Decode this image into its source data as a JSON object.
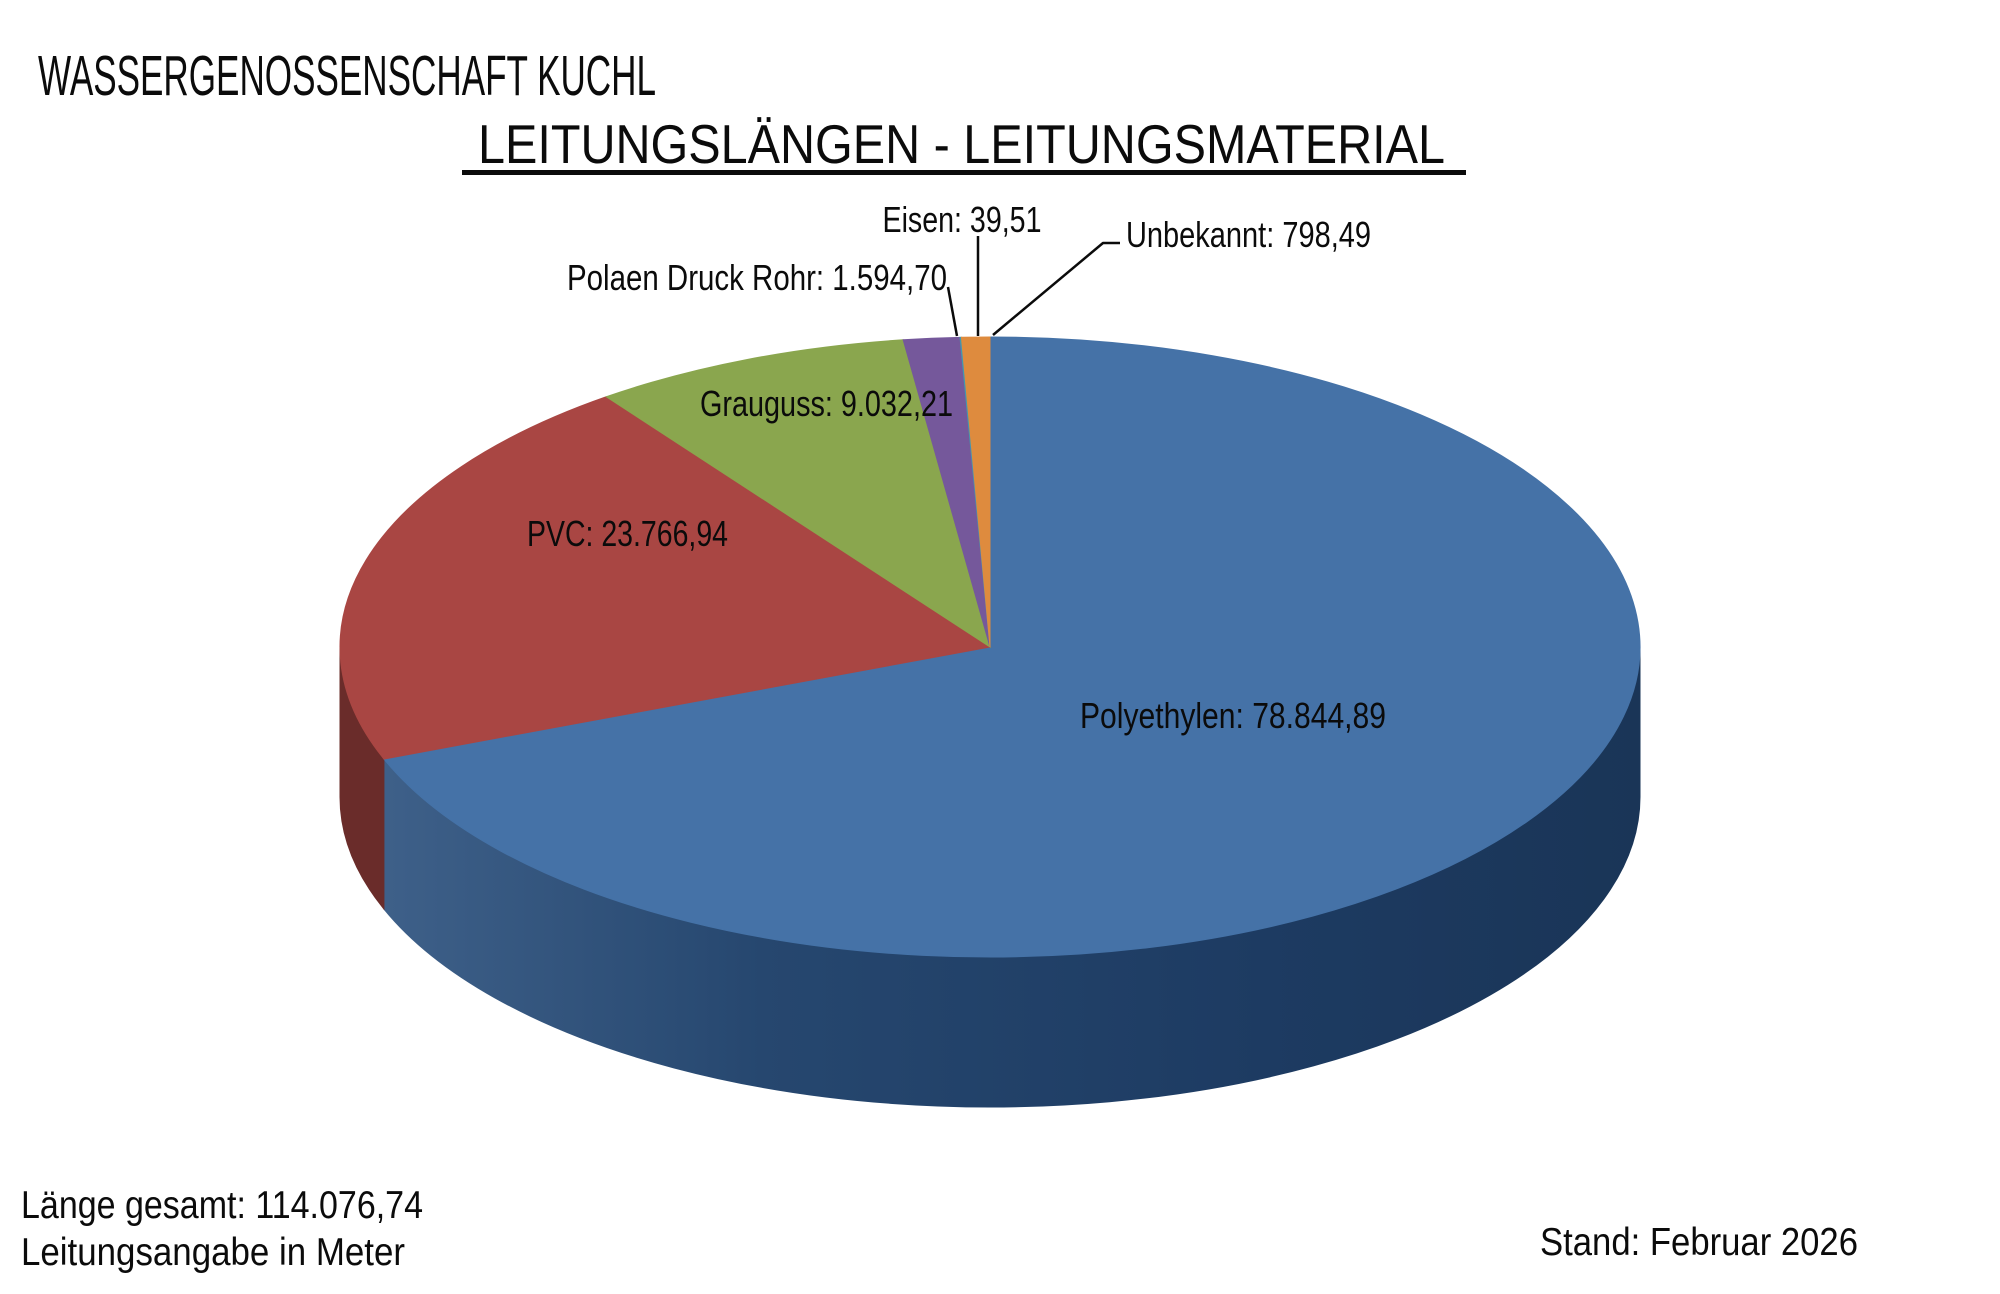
{
  "header": {
    "company": "WASSERGENOSSENSCHAFT  KUCHL"
  },
  "chart_data": {
    "type": "pie",
    "style": "3d",
    "title": "LEITUNGSLÄNGEN - LEITUNGSMATERIAL",
    "direction": "clockwise",
    "start_angle_deg": 0,
    "unit": "Meter",
    "total": 114076.74,
    "slices": [
      {
        "name": "Polyethylen",
        "value": 78844.89,
        "label_display": "Polyethylen: 78.844,89",
        "color": "#4572A7"
      },
      {
        "name": "PVC",
        "value": 23766.94,
        "label_display": "PVC: 23.766,94",
        "color": "#A94643"
      },
      {
        "name": "Grauguss",
        "value": 9032.21,
        "label_display": "Grauguss: 9.032,21",
        "color": "#8AA64E"
      },
      {
        "name": "Polaen Druck Rohr",
        "value": 1594.7,
        "label_display": "Polaen Druck Rohr: 1.594,70",
        "color": "#75589B"
      },
      {
        "name": "Eisen",
        "value": 39.51,
        "label_display": "Eisen: 39,51",
        "color": "#4198AF"
      },
      {
        "name": "Unbekannt",
        "value": 798.49,
        "label_display": "Unbekannt: 798,49",
        "color": "#DE8B3E"
      }
    ]
  },
  "footer": {
    "total_line": "Länge gesamt: 114.076,74",
    "unit_line": "Leitungsangabe in Meter",
    "stand_line": "Stand: Februar 2026"
  }
}
